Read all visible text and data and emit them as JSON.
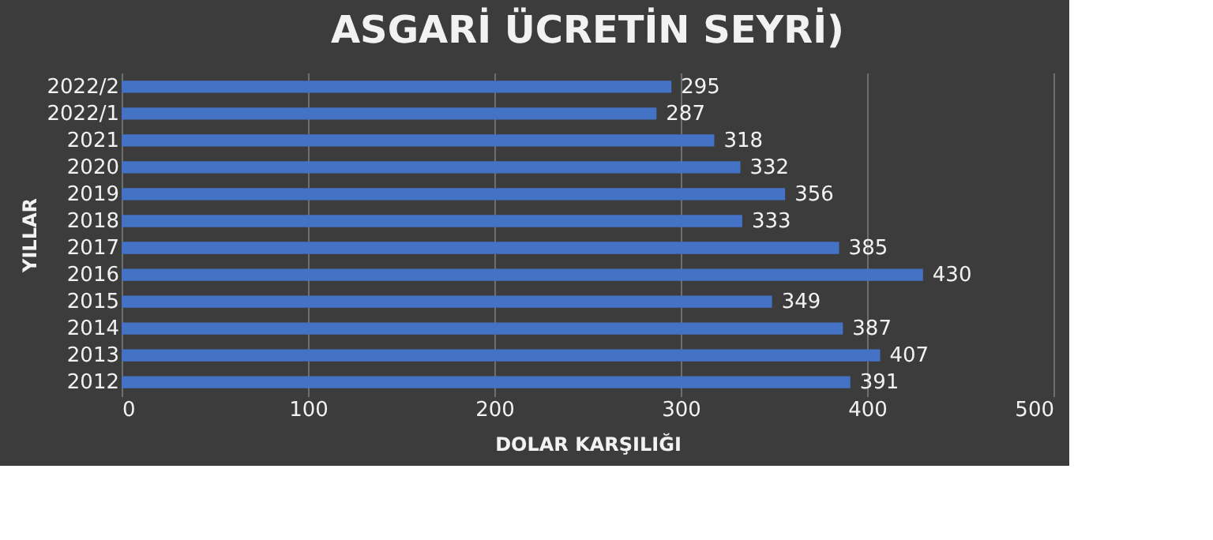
{
  "chart_data": {
    "type": "bar",
    "orientation": "horizontal",
    "title": "ASGARİ ÜCRETİN SEYRİ)",
    "xlabel": "DOLAR KARŞILIĞI",
    "ylabel": "YILLAR",
    "categories": [
      "2022/2",
      "2022/1",
      "2021",
      "2020",
      "2019",
      "2018",
      "2017",
      "2016",
      "2015",
      "2014",
      "2013",
      "2012"
    ],
    "values": [
      295,
      287,
      318,
      332,
      356,
      333,
      385,
      430,
      349,
      387,
      407,
      391
    ],
    "color": "#4472c4",
    "xlim": [
      0,
      500
    ],
    "xticks": [
      0,
      100,
      200,
      300,
      400,
      500
    ],
    "grid": "x",
    "data_labels": true
  }
}
